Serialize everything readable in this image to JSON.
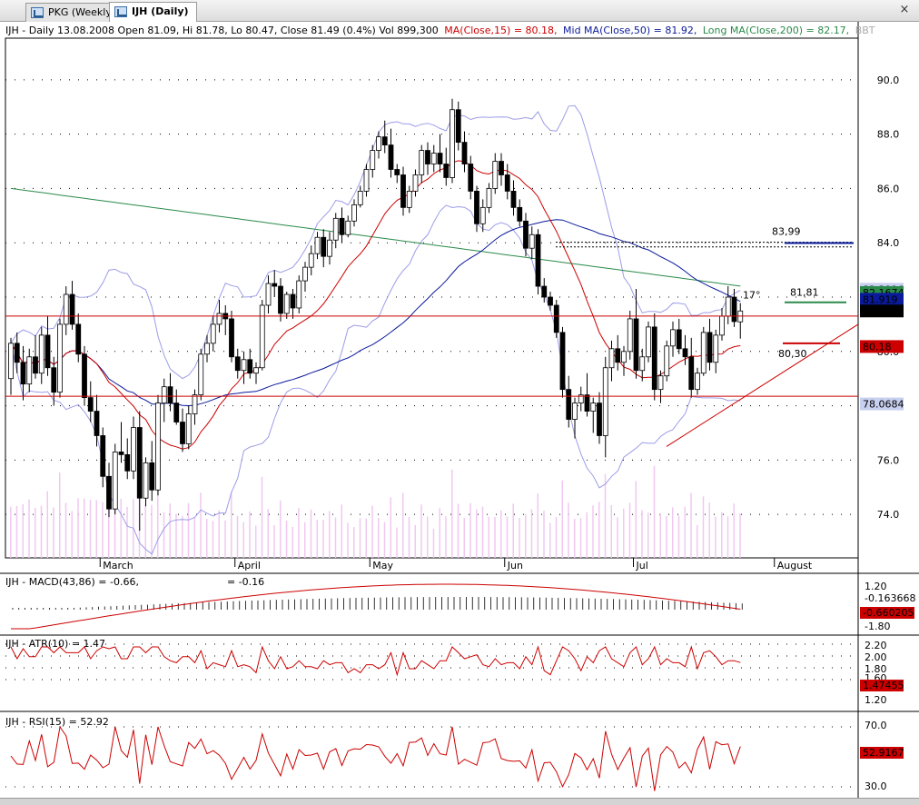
{
  "tabs": [
    {
      "label": "PKG (Weekly)",
      "active": false
    },
    {
      "label": "IJH (Daily)",
      "active": true
    }
  ],
  "close_glyph": "×",
  "header": {
    "prefix": "IJH - Daily 13.08.2008 Open 81.09, Hi 81.78, Lo 80.47, Close 81.49 (0.4%) Vol 899,300",
    "ma_short": "MA(Close,15) = 80.18,",
    "ma_mid": "Mid MA(Close,50) = 81.92,",
    "ma_long": "Long MA(Close,200) = 82.17,",
    "suffix": "BBT"
  },
  "colors": {
    "up": "#ffffff",
    "down": "#000000",
    "ma_short": "#cc0000",
    "ma_mid": "#0a1a9a",
    "ma_long": "#2a8a4a",
    "bbands": "#9c9ce8",
    "grid": "#000000"
  },
  "annotations": {
    "level_8399": "83,99",
    "level_8181": "81,81",
    "angle": "17°",
    "level_8030": "80,30"
  },
  "price_tags": [
    {
      "label": "82.2916",
      "price": 82.2916,
      "bg": "#c8d0f0",
      "fg": "#000000"
    },
    {
      "label": "82.1674",
      "price": 82.1674,
      "bg": "#2a8a4a",
      "fg": "#ffffff"
    },
    {
      "label": "81.919",
      "price": 81.919,
      "bg": "#0a1a9a",
      "fg": "#ffffff"
    },
    {
      "label": "81.49",
      "price": 81.49,
      "bg": "#000000",
      "fg": "#ffffff"
    },
    {
      "label": "80.18",
      "price": 80.18,
      "bg": "#cc0000",
      "fg": "#ffffff"
    },
    {
      "label": "78.0684",
      "price": 78.0684,
      "bg": "#c8d0f0",
      "fg": "#000000"
    }
  ],
  "panels": {
    "macd": {
      "label": "IJH - MACD(43,86) = -0.66,",
      "label2": "= -0.16",
      "ticks": [
        "1.20",
        "-1.80"
      ],
      "tags": [
        "-0.163668",
        "-0.660205"
      ]
    },
    "atr": {
      "label": "IJH - ATR(10) = 1.47",
      "ticks": [
        "2.20",
        "2.00",
        "1.80",
        "1.60",
        "1.20"
      ],
      "tag": "1.47455"
    },
    "rsi": {
      "label": "IJH - RSI(15) = 52.92",
      "ticks": [
        "70.0",
        "30.0"
      ],
      "tag": "52.9167"
    }
  },
  "chart_data": {
    "type": "candlestick",
    "price_axis": {
      "ticks": [
        74.0,
        76.0,
        78.0,
        80.0,
        82.0,
        84.0,
        86.0,
        88.0,
        90.0
      ],
      "range": [
        72.4,
        91.4
      ]
    },
    "x_labels": [
      {
        "label": "March",
        "index": 15
      },
      {
        "label": "April",
        "index": 37
      },
      {
        "label": "May",
        "index": 59
      },
      {
        "label": "Jun",
        "index": 81
      },
      {
        "label": "Jul",
        "index": 102
      },
      {
        "label": "August",
        "index": 125
      }
    ],
    "candles": [
      [
        79.0,
        80.5,
        78.4,
        80.3
      ],
      [
        80.3,
        80.7,
        79.2,
        79.6
      ],
      [
        79.6,
        80.2,
        78.2,
        78.8
      ],
      [
        78.8,
        80.1,
        78.5,
        79.8
      ],
      [
        79.8,
        80.6,
        79.0,
        79.2
      ],
      [
        79.2,
        80.9,
        78.8,
        80.6
      ],
      [
        80.6,
        81.3,
        79.1,
        79.4
      ],
      [
        79.4,
        79.8,
        78.0,
        78.5
      ],
      [
        78.5,
        81.2,
        78.3,
        81.0
      ],
      [
        81.0,
        82.4,
        80.6,
        82.1
      ],
      [
        82.1,
        82.6,
        80.8,
        81.0
      ],
      [
        81.0,
        81.4,
        79.6,
        79.9
      ],
      [
        79.9,
        80.2,
        78.0,
        78.3
      ],
      [
        78.3,
        78.9,
        77.4,
        77.8
      ],
      [
        77.8,
        78.4,
        76.5,
        76.9
      ],
      [
        76.9,
        77.2,
        75.0,
        75.4
      ],
      [
        75.4,
        75.9,
        73.9,
        74.2
      ],
      [
        74.2,
        76.6,
        74.0,
        76.3
      ],
      [
        76.3,
        77.4,
        75.9,
        76.2
      ],
      [
        76.2,
        76.8,
        75.3,
        75.6
      ],
      [
        75.6,
        77.6,
        75.3,
        77.2
      ],
      [
        77.2,
        77.8,
        73.4,
        74.6
      ],
      [
        74.6,
        76.1,
        74.3,
        75.9
      ],
      [
        75.9,
        76.7,
        74.5,
        74.9
      ],
      [
        74.9,
        78.4,
        74.7,
        78.1
      ],
      [
        78.1,
        79.0,
        77.4,
        78.7
      ],
      [
        78.7,
        79.2,
        77.8,
        78.1
      ],
      [
        78.1,
        78.6,
        77.3,
        77.4
      ],
      [
        77.4,
        77.9,
        76.3,
        76.6
      ],
      [
        76.6,
        78.0,
        76.4,
        77.7
      ],
      [
        77.7,
        78.6,
        77.3,
        78.4
      ],
      [
        78.4,
        80.1,
        78.2,
        79.9
      ],
      [
        79.9,
        80.6,
        79.6,
        80.3
      ],
      [
        80.3,
        81.3,
        80.0,
        81.0
      ],
      [
        81.0,
        81.9,
        80.7,
        81.4
      ],
      [
        81.4,
        81.7,
        80.6,
        81.2
      ],
      [
        81.2,
        81.5,
        79.6,
        79.8
      ],
      [
        79.8,
        80.1,
        79.0,
        79.3
      ],
      [
        79.3,
        80.0,
        78.8,
        79.7
      ],
      [
        79.7,
        80.1,
        79.0,
        79.2
      ],
      [
        79.2,
        79.6,
        78.8,
        79.4
      ],
      [
        79.4,
        81.9,
        79.3,
        81.7
      ],
      [
        81.7,
        82.8,
        81.4,
        82.5
      ],
      [
        82.5,
        83.0,
        82.0,
        82.4
      ],
      [
        82.4,
        82.7,
        81.1,
        81.4
      ],
      [
        81.4,
        82.2,
        81.2,
        82.1
      ],
      [
        82.1,
        82.3,
        81.2,
        81.6
      ],
      [
        81.6,
        82.8,
        81.4,
        82.6
      ],
      [
        82.6,
        83.3,
        82.2,
        83.1
      ],
      [
        83.1,
        83.9,
        82.8,
        83.6
      ],
      [
        83.6,
        84.4,
        83.4,
        84.2
      ],
      [
        84.2,
        84.5,
        83.1,
        83.5
      ],
      [
        83.5,
        84.4,
        83.2,
        84.1
      ],
      [
        84.1,
        85.1,
        83.8,
        84.9
      ],
      [
        84.9,
        85.3,
        84.0,
        84.3
      ],
      [
        84.3,
        85.0,
        84.2,
        84.8
      ],
      [
        84.8,
        85.6,
        84.6,
        85.4
      ],
      [
        85.4,
        86.1,
        85.3,
        85.9
      ],
      [
        85.9,
        86.9,
        85.7,
        86.7
      ],
      [
        86.7,
        87.6,
        86.4,
        87.4
      ],
      [
        87.4,
        88.1,
        87.1,
        87.9
      ],
      [
        87.9,
        88.5,
        87.3,
        87.6
      ],
      [
        87.6,
        88.2,
        86.4,
        86.7
      ],
      [
        86.7,
        86.9,
        86.2,
        86.5
      ],
      [
        86.5,
        86.8,
        85.0,
        85.3
      ],
      [
        85.3,
        86.1,
        85.1,
        85.9
      ],
      [
        85.9,
        86.7,
        85.7,
        86.5
      ],
      [
        86.5,
        87.6,
        86.2,
        87.4
      ],
      [
        87.4,
        87.7,
        86.5,
        86.9
      ],
      [
        86.9,
        87.6,
        86.6,
        87.3
      ],
      [
        87.3,
        88.0,
        86.6,
        86.9
      ],
      [
        86.9,
        87.5,
        86.1,
        86.4
      ],
      [
        86.4,
        89.3,
        86.2,
        88.9
      ],
      [
        88.9,
        89.2,
        87.4,
        87.7
      ],
      [
        87.7,
        88.1,
        86.6,
        86.9
      ],
      [
        86.9,
        87.2,
        85.6,
        85.9
      ],
      [
        85.9,
        86.1,
        84.4,
        84.7
      ],
      [
        84.7,
        85.6,
        84.4,
        85.3
      ],
      [
        85.3,
        86.2,
        85.1,
        86.0
      ],
      [
        86.0,
        87.3,
        85.8,
        87.0
      ],
      [
        87.0,
        87.3,
        86.1,
        86.5
      ],
      [
        86.5,
        86.9,
        85.6,
        85.9
      ],
      [
        85.9,
        86.3,
        85.0,
        85.3
      ],
      [
        85.3,
        85.6,
        84.6,
        84.8
      ],
      [
        84.8,
        85.1,
        83.5,
        83.8
      ],
      [
        83.8,
        84.6,
        83.4,
        84.3
      ],
      [
        84.3,
        84.5,
        82.1,
        82.4
      ],
      [
        82.4,
        82.7,
        81.8,
        82.0
      ],
      [
        82.0,
        82.2,
        81.5,
        81.7
      ],
      [
        81.7,
        81.9,
        80.5,
        80.7
      ],
      [
        80.7,
        80.9,
        78.3,
        78.6
      ],
      [
        78.6,
        79.1,
        77.2,
        77.5
      ],
      [
        77.5,
        78.3,
        76.8,
        78.1
      ],
      [
        78.1,
        78.7,
        77.8,
        78.4
      ],
      [
        78.4,
        79.2,
        77.6,
        77.8
      ],
      [
        77.8,
        78.3,
        77.0,
        78.1
      ],
      [
        78.1,
        78.5,
        76.6,
        76.9
      ],
      [
        76.9,
        79.8,
        76.1,
        79.4
      ],
      [
        79.4,
        80.4,
        78.9,
        80.1
      ],
      [
        80.1,
        80.6,
        79.3,
        79.6
      ],
      [
        79.6,
        80.2,
        79.1,
        80.0
      ],
      [
        80.0,
        81.5,
        79.7,
        81.2
      ],
      [
        81.2,
        82.3,
        79.0,
        79.3
      ],
      [
        79.3,
        80.1,
        78.9,
        79.8
      ],
      [
        79.8,
        81.1,
        79.6,
        80.9
      ],
      [
        80.9,
        81.4,
        78.2,
        78.6
      ],
      [
        78.6,
        79.3,
        78.1,
        79.1
      ],
      [
        79.1,
        80.4,
        78.9,
        80.2
      ],
      [
        80.2,
        81.1,
        79.8,
        80.8
      ],
      [
        80.8,
        81.2,
        79.9,
        80.1
      ],
      [
        80.1,
        80.6,
        79.5,
        79.8
      ],
      [
        79.8,
        80.5,
        78.3,
        78.6
      ],
      [
        78.6,
        79.4,
        78.4,
        79.2
      ],
      [
        79.2,
        80.9,
        79.1,
        80.7
      ],
      [
        80.7,
        81.2,
        79.3,
        79.6
      ],
      [
        79.6,
        80.8,
        79.2,
        80.6
      ],
      [
        80.6,
        81.6,
        80.4,
        81.3
      ],
      [
        81.3,
        82.4,
        81.0,
        82.0
      ],
      [
        82.0,
        82.3,
        80.9,
        81.1
      ],
      [
        81.09,
        81.78,
        80.47,
        81.49
      ]
    ]
  }
}
